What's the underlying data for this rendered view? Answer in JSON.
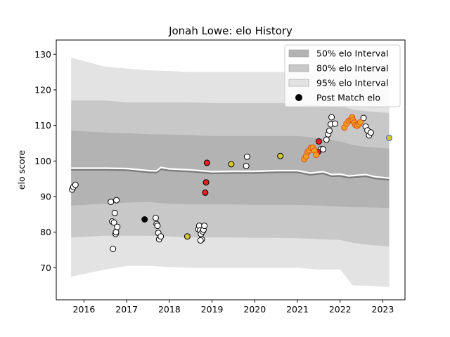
{
  "chart_data": {
    "type": "scatter",
    "title": "Jonah Lowe: elo History",
    "xlabel": "",
    "ylabel": "elo score",
    "xlim": [
      2015.35,
      2023.52
    ],
    "ylim": [
      61,
      134
    ],
    "x_ticks": [
      {
        "value": 2016,
        "label": "2016"
      },
      {
        "value": 2017,
        "label": "2017"
      },
      {
        "value": 2018,
        "label": "2018"
      },
      {
        "value": 2019,
        "label": "2019"
      },
      {
        "value": 2020,
        "label": "2020"
      },
      {
        "value": 2021,
        "label": "2021"
      },
      {
        "value": 2022,
        "label": "2022"
      },
      {
        "value": 2023,
        "label": "2023"
      }
    ],
    "y_ticks": [
      {
        "value": 70,
        "label": "70"
      },
      {
        "value": 80,
        "label": "80"
      },
      {
        "value": 90,
        "label": "90"
      },
      {
        "value": 100,
        "label": "100"
      },
      {
        "value": 110,
        "label": "110"
      },
      {
        "value": 120,
        "label": "120"
      },
      {
        "value": 130,
        "label": "130"
      }
    ],
    "legend": {
      "placement": "upper right",
      "entries": [
        {
          "label": "50% elo Interval",
          "kind": "band",
          "color": "#b3b3b3"
        },
        {
          "label": "80% elo Interval",
          "kind": "band",
          "color": "#c8c8c8"
        },
        {
          "label": "95% elo Interval",
          "kind": "band",
          "color": "#e3e3e3"
        },
        {
          "label": "Post Match elo",
          "kind": "marker",
          "color": "#000000"
        }
      ]
    },
    "mean_x": [
      2015.7,
      2016.5,
      2017.0,
      2017.5,
      2017.7,
      2017.8,
      2018.0,
      2018.5,
      2019.0,
      2019.5,
      2020.0,
      2020.5,
      2021.0,
      2021.3,
      2021.6,
      2021.8,
      2022.0,
      2022.2,
      2022.4,
      2022.6,
      2022.8,
      2023.15
    ],
    "mean_y": [
      98.0,
      98.0,
      97.9,
      97.3,
      97.2,
      98.2,
      97.8,
      97.5,
      97.0,
      97.1,
      97.1,
      97.3,
      97.3,
      96.6,
      97.0,
      96.2,
      96.3,
      95.8,
      96.0,
      96.2,
      95.6,
      95.2
    ],
    "band_x": [
      2015.7,
      2016.5,
      2017.0,
      2017.5,
      2018.0,
      2018.5,
      2019.0,
      2019.5,
      2020.0,
      2020.5,
      2021.0,
      2021.5,
      2022.0,
      2022.3,
      2022.6,
      2023.15
    ],
    "band_50_lower": [
      87.5,
      88.0,
      88.3,
      88.5,
      88.0,
      87.8,
      87.8,
      87.8,
      87.7,
      87.7,
      87.7,
      87.5,
      87.2,
      87.0,
      87.0,
      86.8
    ],
    "band_50_upper": [
      108.5,
      108.0,
      107.8,
      107.5,
      107.4,
      107.3,
      107.0,
      107.0,
      107.0,
      107.0,
      107.0,
      106.5,
      105.5,
      104.5,
      104.0,
      103.5
    ],
    "band_80_lower": [
      78.5,
      79.0,
      79.0,
      79.0,
      78.8,
      78.5,
      78.5,
      78.5,
      78.4,
      78.4,
      78.3,
      78.0,
      77.8,
      77.0,
      76.5,
      76.0
    ],
    "band_80_upper": [
      117.0,
      117.0,
      116.5,
      116.5,
      116.5,
      116.5,
      116.3,
      116.3,
      116.3,
      116.3,
      116.3,
      115.8,
      115.5,
      114.5,
      114.0,
      113.5
    ],
    "band_95_lower": [
      67.5,
      69.5,
      70.5,
      70.5,
      70.2,
      70.0,
      70.0,
      70.0,
      70.0,
      70.0,
      70.0,
      69.5,
      69.5,
      65.0,
      65.0,
      64.5
    ],
    "band_95_upper": [
      129.0,
      126.5,
      126.0,
      125.5,
      125.3,
      125.0,
      125.0,
      125.0,
      125.0,
      125.0,
      125.0,
      125.0,
      125.0,
      126.0,
      126.0,
      126.5
    ],
    "series": [
      {
        "marker_color": "#ffffff",
        "x": [
          2015.72,
          2015.75,
          2015.8,
          2016.63,
          2016.66,
          2016.7,
          2016.72,
          2016.74,
          2016.75,
          2016.76,
          2016.78,
          2016.68,
          2017.68,
          2017.7,
          2017.72,
          2017.74,
          2017.76,
          2017.8,
          2018.68,
          2018.7,
          2018.72,
          2018.74,
          2018.76,
          2018.78,
          2018.8,
          2018.82,
          2018.73,
          2019.8,
          2019.82,
          2021.55,
          2021.6,
          2021.68,
          2021.72,
          2021.75,
          2021.78,
          2021.8,
          2021.88,
          2022.55,
          2022.6,
          2022.64,
          2022.68,
          2022.72
        ],
        "y": [
          92.0,
          92.7,
          93.3,
          88.5,
          83.0,
          82.7,
          85.4,
          79.5,
          80.0,
          89.0,
          81.5,
          75.3,
          84.0,
          82.3,
          81.8,
          79.8,
          78.0,
          78.8,
          80.8,
          81.8,
          80.5,
          79.5,
          78.0,
          80.2,
          80.7,
          81.8,
          77.7,
          98.6,
          101.2,
          103.3,
          103.3,
          106.0,
          107.5,
          108.5,
          110.3,
          112.3,
          110.5,
          112.1,
          109.7,
          108.6,
          107.2,
          108.0
        ]
      },
      {
        "marker_color": "#000000",
        "x": [
          2017.42
        ],
        "y": [
          83.6
        ]
      },
      {
        "marker_color": "#d4c832",
        "x": [
          2018.42,
          2019.45,
          2020.6,
          2023.15
        ],
        "y": [
          78.8,
          99.1,
          101.4,
          106.5
        ]
      },
      {
        "marker_color": "#e62020",
        "x": [
          2018.88,
          2018.86,
          2018.84,
          2021.5,
          2021.48
        ],
        "y": [
          99.5,
          94.0,
          91.1,
          105.5,
          102.6
        ]
      },
      {
        "marker_color": "#f0a020",
        "x": [
          2021.16,
          2021.2,
          2021.24,
          2021.28,
          2021.32,
          2021.36,
          2021.4,
          2021.44,
          2022.1,
          2022.15,
          2022.2,
          2022.25,
          2022.28,
          2022.3,
          2022.33,
          2022.36,
          2022.4,
          2022.44,
          2022.47
        ],
        "y": [
          100.5,
          101.3,
          102.6,
          103.0,
          103.7,
          103.8,
          102.9,
          101.7,
          109.4,
          110.5,
          111.3,
          111.6,
          112.3,
          111.5,
          110.8,
          110.1,
          109.9,
          110.3,
          110.9
        ]
      }
    ]
  }
}
